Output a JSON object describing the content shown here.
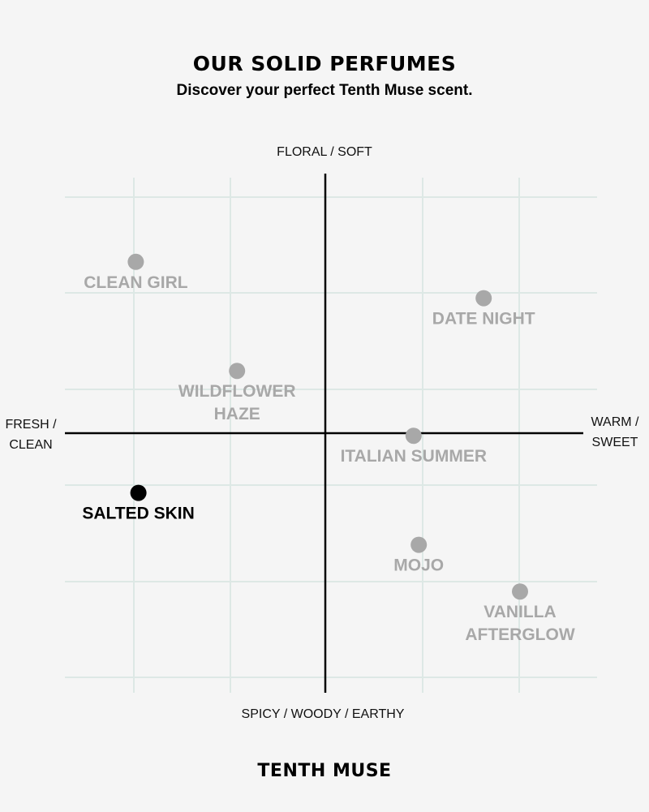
{
  "header": {
    "title": "OUR SOLID PERFUMES",
    "subtitle": "Discover your perfect Tenth Muse scent."
  },
  "footer": {
    "brand": "TENTH MUSE"
  },
  "colors": {
    "background": "#f5f5f5",
    "grid": "#dde8e5",
    "axis": "#000000",
    "muted_point": "#a8a8a8",
    "highlight_point": "#000000"
  },
  "chart_data": {
    "type": "scatter",
    "title": "OUR SOLID PERFUMES",
    "subtitle": "Discover your perfect Tenth Muse scent.",
    "xlim": [
      -1,
      1
    ],
    "ylim": [
      -1,
      1
    ],
    "grid": true,
    "axis_labels": {
      "top": "FLORAL / SOFT",
      "bottom": "SPICY / WOODY / EARTHY",
      "left": [
        "FRESH /",
        "CLEAN"
      ],
      "right": [
        "WARM /",
        "SWEET"
      ]
    },
    "points": [
      {
        "label": [
          "CLEAN GIRL"
        ],
        "x": -0.73,
        "y": 0.66,
        "highlight": false
      },
      {
        "label": [
          "DATE NIGHT"
        ],
        "x": 0.61,
        "y": 0.52,
        "highlight": false
      },
      {
        "label": [
          "WILDFLOWER",
          "HAZE"
        ],
        "x": -0.34,
        "y": 0.24,
        "highlight": false
      },
      {
        "label": [
          "ITALIAN SUMMER"
        ],
        "x": 0.34,
        "y": -0.01,
        "highlight": false
      },
      {
        "label": [
          "SALTED SKIN"
        ],
        "x": -0.72,
        "y": -0.23,
        "highlight": true
      },
      {
        "label": [
          "MOJO"
        ],
        "x": 0.36,
        "y": -0.43,
        "highlight": false
      },
      {
        "label": [
          "VANILLA",
          "AFTERGLOW"
        ],
        "x": 0.75,
        "y": -0.61,
        "highlight": false
      }
    ]
  }
}
